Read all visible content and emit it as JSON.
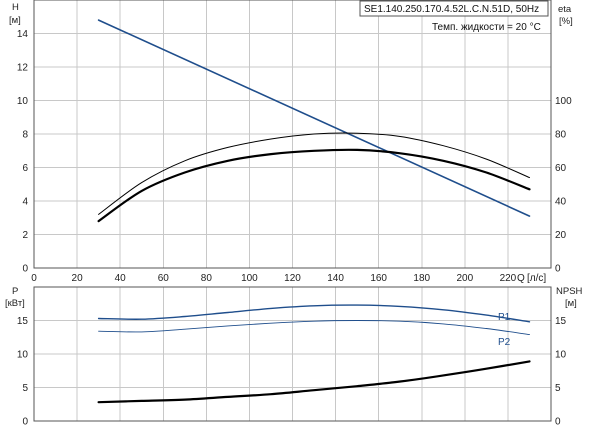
{
  "title_box": "SE1.140.250.170.4.52L.C.N.51D, 50Hz",
  "info_text": "Темп. жидкости = 20 °C",
  "chart_data": [
    {
      "type": "line",
      "panel": "head-efficiency",
      "xlabel": "Q",
      "xunit": "[л/с]",
      "ylabel": "H",
      "yunit": "[м]",
      "y2label": "eta",
      "y2unit": "[%]",
      "xlim": [
        0,
        240
      ],
      "ylim": [
        0,
        16
      ],
      "y2lim": [
        0,
        160
      ],
      "x_ticks": [
        0,
        20,
        40,
        60,
        80,
        100,
        120,
        140,
        160,
        180,
        200,
        220
      ],
      "y_ticks": [
        0,
        2,
        4,
        6,
        8,
        10,
        12,
        14
      ],
      "y2_ticks": [
        0,
        20,
        40,
        60,
        80,
        100
      ],
      "grid": true,
      "series": [
        {
          "id": "head",
          "axis": "left",
          "color": "#1f4e8c",
          "width": 1.6,
          "x": [
            30,
            230
          ],
          "y": [
            14.8,
            3.1
          ]
        },
        {
          "id": "eta-pump",
          "axis": "right",
          "color": "#000000",
          "width": 1.0,
          "x": [
            30,
            50,
            70,
            90,
            110,
            130,
            150,
            170,
            190,
            210,
            230
          ],
          "y": [
            32,
            51,
            64,
            72,
            77,
            80,
            80.5,
            78.5,
            73,
            65,
            54
          ]
        },
        {
          "id": "eta-total",
          "axis": "right",
          "color": "#000000",
          "width": 2.2,
          "x": [
            30,
            50,
            70,
            90,
            110,
            130,
            150,
            170,
            190,
            210,
            230
          ],
          "y": [
            28,
            46,
            57,
            64,
            68,
            70,
            70.5,
            68.5,
            64,
            57,
            47
          ]
        }
      ]
    },
    {
      "type": "line",
      "panel": "power-npsh",
      "ylabel": "P",
      "yunit": "[кВт]",
      "y2label": "NPSH",
      "y2unit": "[м]",
      "xlim": [
        0,
        240
      ],
      "ylim": [
        0,
        20
      ],
      "y2lim": [
        0,
        20
      ],
      "y_ticks": [
        0,
        5,
        10,
        15
      ],
      "y2_ticks": [
        0,
        5,
        10,
        15
      ],
      "grid": true,
      "series": [
        {
          "id": "P1",
          "name": "P1",
          "axis": "left",
          "color": "#1f4e8c",
          "width": 1.4,
          "x": [
            30,
            50,
            70,
            90,
            110,
            130,
            150,
            170,
            190,
            210,
            230
          ],
          "y": [
            15.3,
            15.2,
            15.6,
            16.2,
            16.8,
            17.2,
            17.3,
            17.1,
            16.6,
            15.8,
            14.8
          ]
        },
        {
          "id": "P2",
          "name": "P2",
          "axis": "left",
          "color": "#1f4e8c",
          "width": 0.9,
          "x": [
            30,
            50,
            70,
            90,
            110,
            130,
            150,
            170,
            190,
            210,
            230
          ],
          "y": [
            13.4,
            13.3,
            13.7,
            14.2,
            14.6,
            14.9,
            15.0,
            14.9,
            14.5,
            13.8,
            12.9
          ]
        },
        {
          "id": "NPSH",
          "axis": "right",
          "color": "#000000",
          "width": 2.2,
          "x": [
            30,
            50,
            70,
            90,
            110,
            130,
            150,
            170,
            190,
            210,
            230
          ],
          "y": [
            2.8,
            3.0,
            3.2,
            3.6,
            4.0,
            4.6,
            5.2,
            5.9,
            6.8,
            7.8,
            8.9
          ]
        }
      ]
    }
  ]
}
